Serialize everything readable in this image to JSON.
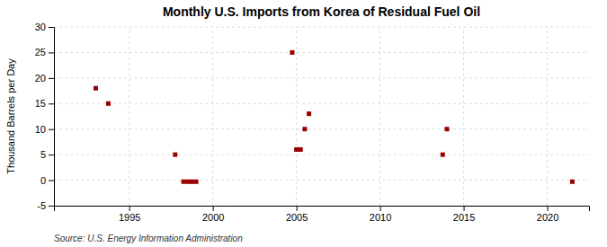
{
  "chart_data": {
    "type": "scatter",
    "title": "Monthly U.S. Imports from Korea of Residual Fuel Oil",
    "ylabel": "Thousand Barrels per Day",
    "source": "Source: U.S. Energy Information Administration",
    "x": [
      1993.0,
      1993.75,
      1997.75,
      1998.25,
      1998.5,
      1998.75,
      1999.0,
      2004.75,
      2005.0,
      2005.25,
      2005.5,
      2005.75,
      2013.75,
      2014.0,
      2021.5
    ],
    "values": [
      18,
      15,
      5,
      -0.3,
      -0.3,
      -0.3,
      -0.3,
      25,
      6,
      6,
      10,
      13,
      5,
      10,
      -0.3
    ],
    "color": "#990000",
    "marker": "square",
    "xlim": [
      1990.5,
      2022.5
    ],
    "xticks": [
      1995,
      2000,
      2005,
      2010,
      2015,
      2020
    ],
    "ylim": [
      -5,
      30
    ],
    "yticks": [
      -5,
      0,
      5,
      10,
      15,
      20,
      25,
      30
    ],
    "grid": true
  }
}
